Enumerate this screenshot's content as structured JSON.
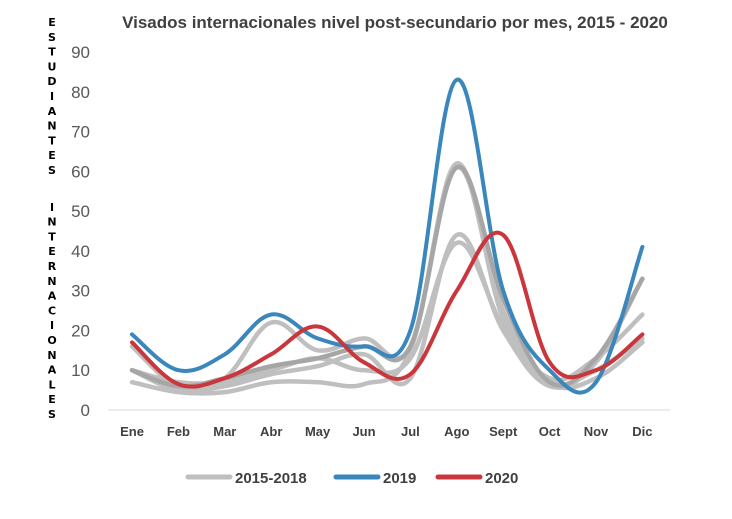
{
  "chart_data": {
    "type": "line",
    "title": "Visados internacionales nivel post-secundario por mes, 2015 - 2020",
    "ylabel": "ESTUDIANTES INTERNACIONALES",
    "ylabel_words": [
      "ESTUDIANTES",
      "INTERNACIONALES"
    ],
    "xlabel": "",
    "categories": [
      "Ene",
      "Feb",
      "Mar",
      "Abr",
      "May",
      "Jun",
      "Jul",
      "Ago",
      "Sept",
      "Oct",
      "Nov",
      "Dic"
    ],
    "ylim": [
      0,
      90
    ],
    "yticks": [
      "0",
      "10",
      "20",
      "30",
      "40",
      "50",
      "60",
      "70",
      "80",
      "90"
    ],
    "grid": false,
    "legend_position": "bottom",
    "legend": [
      {
        "label": "2015-2018",
        "color": "#bfbfbf"
      },
      {
        "label": "2019",
        "color": "#3a87be"
      },
      {
        "label": "2020",
        "color": "#c9373d"
      }
    ],
    "series": [
      {
        "group": "2015-2018",
        "color": "#bfbfbf",
        "values": [
          7,
          4.5,
          4.5,
          7,
          7,
          6.5,
          15,
          61,
          25,
          7,
          8,
          17
        ]
      },
      {
        "group": "2015-2018",
        "color": "#bfbfbf",
        "values": [
          16,
          6,
          8,
          22,
          15,
          18,
          16,
          62,
          23,
          8,
          13,
          24
        ]
      },
      {
        "group": "2015-2018",
        "color": "#bfbfbf",
        "values": [
          10,
          5,
          6,
          9,
          11,
          14,
          8,
          44,
          20,
          6,
          12,
          33
        ]
      },
      {
        "group": "2015-2018",
        "color": "#bfbfbf",
        "values": [
          10,
          7,
          7,
          10,
          13,
          10,
          13,
          42,
          21,
          7,
          10,
          18
        ]
      },
      {
        "group": "2015-2018",
        "color": "#a6a6a6",
        "values": [
          10,
          6,
          8,
          11,
          13,
          16,
          16,
          61,
          28,
          7,
          13,
          33
        ]
      },
      {
        "name": "2019",
        "color": "#3a87be",
        "values": [
          19,
          10,
          14,
          24,
          18,
          16,
          20,
          83,
          30,
          10,
          7,
          41
        ]
      },
      {
        "name": "2020",
        "color": "#c9373d",
        "values": [
          17,
          6.5,
          8,
          14,
          21,
          12,
          9,
          30,
          44,
          12,
          10,
          19
        ]
      }
    ]
  }
}
